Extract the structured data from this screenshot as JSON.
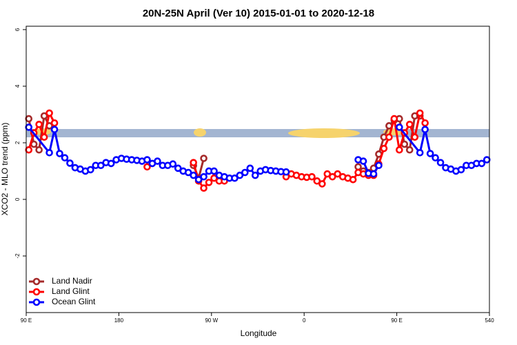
{
  "chart_data": {
    "type": "line",
    "title": "20N-25N April (Ver 10)   2015-01-01 to 2020-12-18",
    "x_label": "Longitude",
    "y_label": "XCO2 - MLO trend (ppm)",
    "xlim": [
      90,
      540
    ],
    "ylim": [
      -4,
      6.12
    ],
    "xticks": [
      {
        "value": 90,
        "label": "90 E"
      },
      180,
      {
        "value": 270,
        "label": "90 W"
      },
      {
        "value": 360,
        "label": "0"
      },
      {
        "value": 450,
        "label": "90 E"
      },
      540
    ],
    "yticks": [
      -2,
      0,
      2,
      4,
      6
    ],
    "legend": "bottom-left",
    "series": [
      {
        "name": "Land Nadir",
        "color": "#a52a2a",
        "x": [
          92.5,
          97.5,
          102.5,
          107.5,
          112.5,
          null,
          252.5,
          257.5,
          262.5,
          null,
          412.5,
          417.5,
          422.5,
          427.5,
          432.5,
          437.5,
          442.5,
          447.5,
          452.5,
          457.5,
          462.5,
          467.5,
          472.5
        ],
        "values": [
          2.85,
          1.95,
          1.75,
          2.95,
          2.6,
          null,
          1.2,
          0.75,
          1.45,
          null,
          1.15,
          1.0,
          0.95,
          1.1,
          1.6,
          2.2,
          2.6,
          2.8,
          2.85,
          1.95,
          1.75,
          2.95,
          2.95
        ]
      },
      {
        "name": "Land Glint",
        "color": "#ff0000",
        "x": [
          92.5,
          97.5,
          102.5,
          107.5,
          112.5,
          117.5,
          null,
          207.5,
          null,
          252.5,
          257.5,
          262.5,
          267.5,
          272.5,
          277.5,
          282.5,
          null,
          342.5,
          347.5,
          352.5,
          357.5,
          362.5,
          367.5,
          372.5,
          377.5,
          382.5,
          387.5,
          392.5,
          397.5,
          402.5,
          407.5,
          412.5,
          417.5,
          422.5,
          427.5,
          432.5,
          437.5,
          442.5,
          447.5,
          452.5,
          457.5,
          462.5,
          467.5,
          472.5,
          477.5
        ],
        "values": [
          1.75,
          2.35,
          2.65,
          2.2,
          3.05,
          2.7,
          null,
          1.15,
          null,
          1.3,
          0.65,
          0.4,
          0.6,
          0.75,
          0.65,
          0.65,
          null,
          0.8,
          0.9,
          0.85,
          0.8,
          0.78,
          0.8,
          0.65,
          0.55,
          0.9,
          0.8,
          0.9,
          0.8,
          0.75,
          0.7,
          0.95,
          0.9,
          0.85,
          0.85,
          1.25,
          1.8,
          2.2,
          2.85,
          1.75,
          2.35,
          2.65,
          2.2,
          3.05,
          2.7
        ]
      },
      {
        "name": "Ocean Glint",
        "color": "#0000ff",
        "x": [
          92.5,
          112.5,
          117.5,
          122.5,
          127.5,
          132.5,
          137.5,
          142.5,
          147.5,
          152.5,
          157.5,
          162.5,
          167.5,
          172.5,
          177.5,
          182.5,
          187.5,
          192.5,
          197.5,
          202.5,
          207.5,
          212.5,
          217.5,
          222.5,
          227.5,
          232.5,
          237.5,
          242.5,
          247.5,
          252.5,
          257.5,
          262.5,
          267.5,
          272.5,
          277.5,
          282.5,
          287.5,
          292.5,
          297.5,
          302.5,
          307.5,
          312.5,
          317.5,
          322.5,
          327.5,
          332.5,
          337.5,
          342.5,
          null,
          412.5,
          417.5,
          422.5,
          427.5,
          432.5,
          null,
          452.5,
          472.5,
          477.5,
          482.5,
          487.5,
          492.5,
          497.5,
          502.5,
          507.5,
          512.5,
          517.5,
          522.5,
          527.5,
          532.5,
          537.5
        ],
        "values": [
          2.55,
          1.65,
          2.47,
          1.62,
          1.47,
          1.28,
          1.12,
          1.07,
          1.0,
          1.05,
          1.2,
          1.2,
          1.3,
          1.27,
          1.4,
          1.45,
          1.42,
          1.4,
          1.38,
          1.35,
          1.4,
          1.27,
          1.35,
          1.2,
          1.2,
          1.25,
          1.1,
          1.0,
          0.95,
          0.85,
          0.7,
          0.8,
          1.0,
          1.0,
          0.85,
          0.8,
          0.75,
          0.75,
          0.85,
          0.95,
          1.1,
          0.85,
          1.0,
          1.05,
          1.02,
          1.0,
          0.98,
          0.97,
          null,
          1.4,
          1.35,
          0.92,
          0.9,
          1.2,
          null,
          2.55,
          1.65,
          2.47,
          1.62,
          1.47,
          1.3,
          1.12,
          1.07,
          1.0,
          1.05,
          1.2,
          1.2,
          1.27,
          1.27,
          1.4
        ]
      }
    ]
  }
}
